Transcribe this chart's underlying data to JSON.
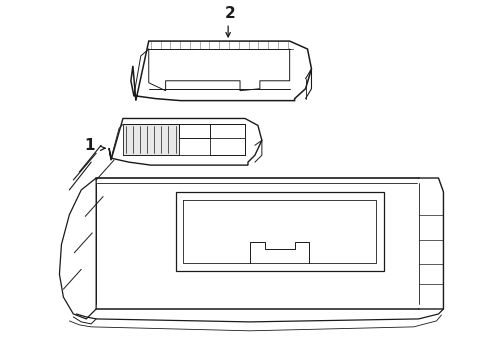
{
  "background_color": "#ffffff",
  "line_color": "#1a1a1a",
  "line_width": 1.0,
  "label_2_text": "2",
  "label_1_text": "1",
  "figsize": [
    4.9,
    3.6
  ],
  "dpi": 100
}
